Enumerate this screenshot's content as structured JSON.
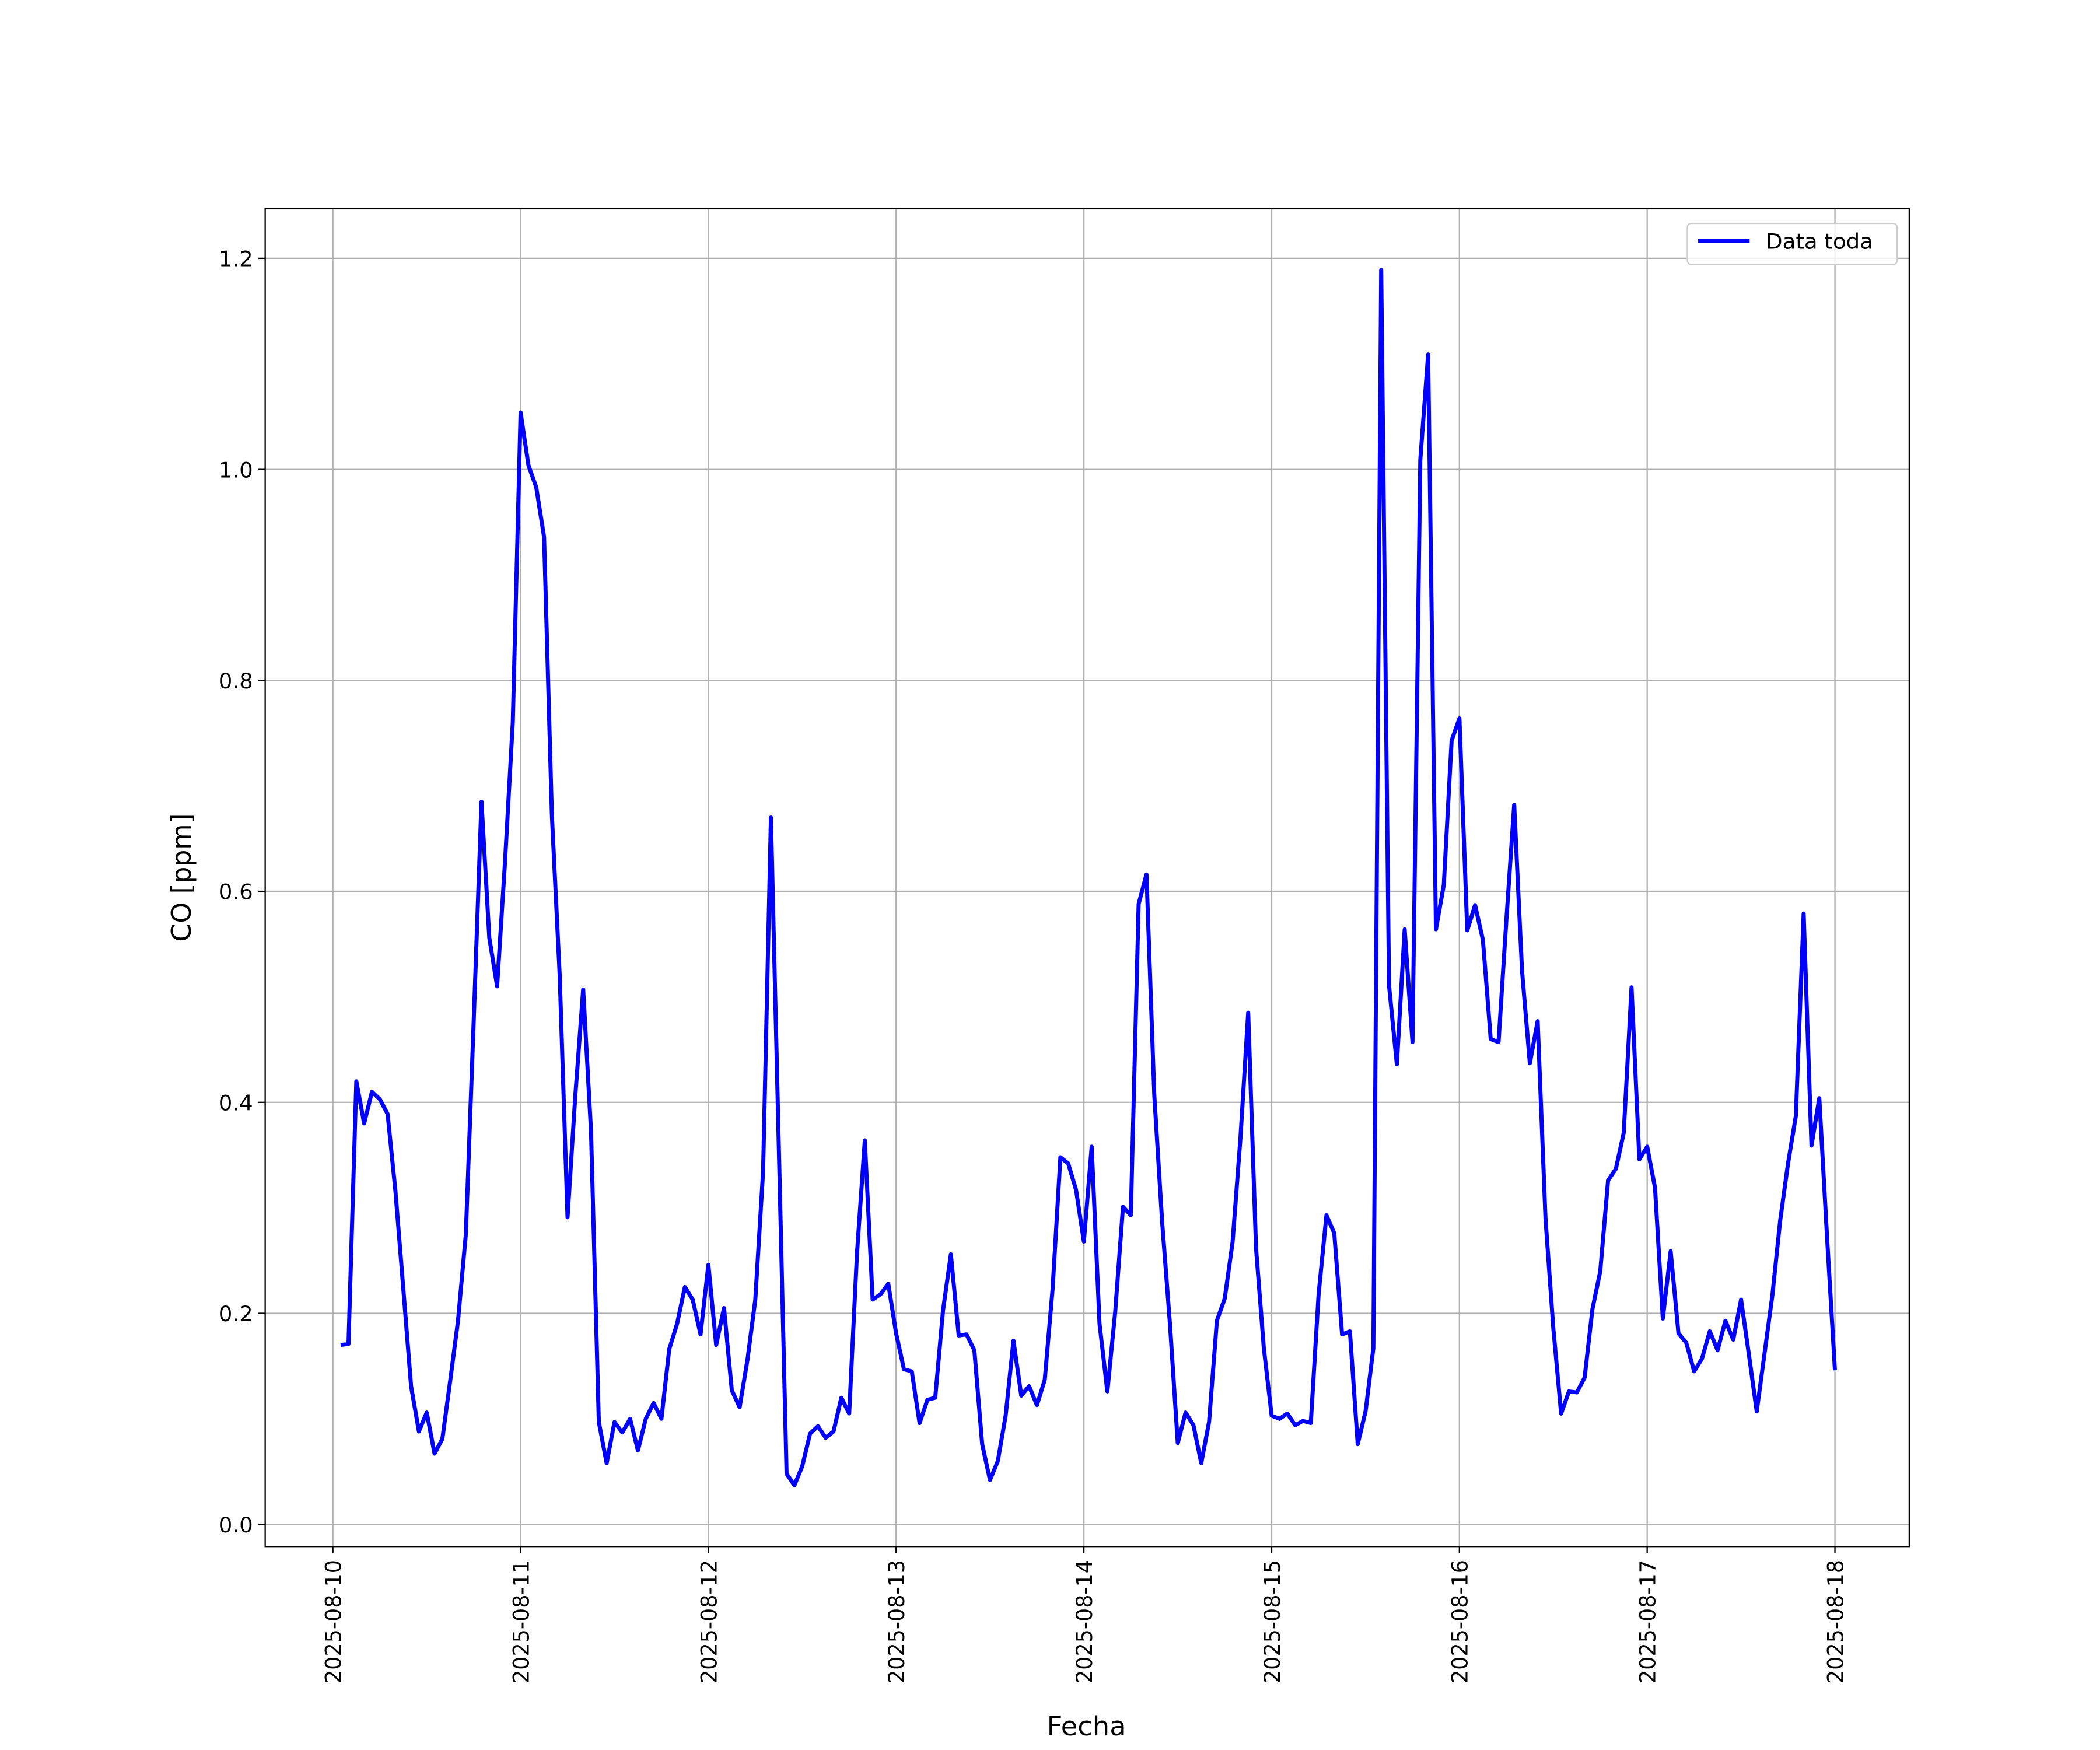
{
  "chart_data": {
    "type": "line",
    "xlabel": "Fecha",
    "ylabel": "CO [ppm]",
    "x": [
      "2025-08-10T01:00",
      "2025-08-10T02:00",
      "2025-08-10T03:00",
      "2025-08-10T04:00",
      "2025-08-10T05:00",
      "2025-08-10T06:00",
      "2025-08-10T07:00",
      "2025-08-10T08:00",
      "2025-08-10T09:00",
      "2025-08-10T10:00",
      "2025-08-10T11:00",
      "2025-08-10T12:00",
      "2025-08-10T13:00",
      "2025-08-10T14:00",
      "2025-08-10T15:00",
      "2025-08-10T16:00",
      "2025-08-10T17:00",
      "2025-08-10T18:00",
      "2025-08-10T19:00",
      "2025-08-10T20:00",
      "2025-08-10T21:00",
      "2025-08-10T22:00",
      "2025-08-10T23:00",
      "2025-08-11T00:00",
      "2025-08-11T01:00",
      "2025-08-11T02:00",
      "2025-08-11T03:00",
      "2025-08-11T04:00",
      "2025-08-11T05:00",
      "2025-08-11T06:00",
      "2025-08-11T07:00",
      "2025-08-11T08:00",
      "2025-08-11T09:00",
      "2025-08-11T10:00",
      "2025-08-11T11:00",
      "2025-08-11T12:00",
      "2025-08-11T13:00",
      "2025-08-11T14:00",
      "2025-08-11T15:00",
      "2025-08-11T16:00",
      "2025-08-11T17:00",
      "2025-08-11T18:00",
      "2025-08-11T19:00",
      "2025-08-11T20:00",
      "2025-08-11T21:00",
      "2025-08-11T22:00",
      "2025-08-11T23:00",
      "2025-08-12T00:00",
      "2025-08-12T01:00",
      "2025-08-12T02:00",
      "2025-08-12T03:00",
      "2025-08-12T04:00",
      "2025-08-12T05:00",
      "2025-08-12T06:00",
      "2025-08-12T07:00",
      "2025-08-12T08:00",
      "2025-08-12T09:00",
      "2025-08-12T10:00",
      "2025-08-12T11:00",
      "2025-08-12T12:00",
      "2025-08-12T13:00",
      "2025-08-12T14:00",
      "2025-08-12T15:00",
      "2025-08-12T16:00",
      "2025-08-12T17:00",
      "2025-08-12T18:00",
      "2025-08-12T19:00",
      "2025-08-12T20:00",
      "2025-08-12T21:00",
      "2025-08-12T22:00",
      "2025-08-12T23:00",
      "2025-08-13T00:00",
      "2025-08-13T01:00",
      "2025-08-13T02:00",
      "2025-08-13T03:00",
      "2025-08-13T04:00",
      "2025-08-13T05:00",
      "2025-08-13T06:00",
      "2025-08-13T07:00",
      "2025-08-13T08:00",
      "2025-08-13T09:00",
      "2025-08-13T10:00",
      "2025-08-13T11:00",
      "2025-08-13T12:00",
      "2025-08-13T13:00",
      "2025-08-13T14:00",
      "2025-08-13T15:00",
      "2025-08-13T16:00",
      "2025-08-13T17:00",
      "2025-08-13T18:00",
      "2025-08-13T19:00",
      "2025-08-13T20:00",
      "2025-08-13T21:00",
      "2025-08-13T22:00",
      "2025-08-13T23:00",
      "2025-08-14T00:00",
      "2025-08-14T01:00",
      "2025-08-14T02:00",
      "2025-08-14T03:00",
      "2025-08-14T04:00",
      "2025-08-14T05:00",
      "2025-08-14T06:00",
      "2025-08-14T07:00",
      "2025-08-14T08:00",
      "2025-08-14T09:00",
      "2025-08-14T10:00",
      "2025-08-14T11:00",
      "2025-08-14T12:00",
      "2025-08-14T13:00",
      "2025-08-14T14:00",
      "2025-08-14T15:00",
      "2025-08-14T16:00",
      "2025-08-14T17:00",
      "2025-08-14T18:00",
      "2025-08-14T19:00",
      "2025-08-14T20:00",
      "2025-08-14T21:00",
      "2025-08-14T22:00",
      "2025-08-14T23:00",
      "2025-08-15T00:00",
      "2025-08-15T01:00",
      "2025-08-15T02:00",
      "2025-08-15T03:00",
      "2025-08-15T04:00",
      "2025-08-15T05:00",
      "2025-08-15T06:00",
      "2025-08-15T07:00",
      "2025-08-15T08:00",
      "2025-08-15T09:00",
      "2025-08-15T10:00",
      "2025-08-15T11:00",
      "2025-08-15T12:00",
      "2025-08-15T13:00",
      "2025-08-15T14:00",
      "2025-08-15T15:00",
      "2025-08-15T16:00",
      "2025-08-15T17:00",
      "2025-08-15T18:00",
      "2025-08-15T19:00",
      "2025-08-15T20:00",
      "2025-08-15T21:00",
      "2025-08-15T22:00",
      "2025-08-15T23:00",
      "2025-08-16T00:00",
      "2025-08-16T01:00",
      "2025-08-16T02:00",
      "2025-08-16T03:00",
      "2025-08-16T04:00",
      "2025-08-16T05:00",
      "2025-08-16T06:00",
      "2025-08-16T07:00",
      "2025-08-16T08:00",
      "2025-08-16T09:00",
      "2025-08-16T10:00",
      "2025-08-16T11:00",
      "2025-08-16T12:00",
      "2025-08-16T13:00",
      "2025-08-16T14:00",
      "2025-08-16T15:00",
      "2025-08-16T16:00",
      "2025-08-16T17:00",
      "2025-08-16T18:00",
      "2025-08-16T19:00",
      "2025-08-16T20:00",
      "2025-08-16T21:00",
      "2025-08-16T22:00",
      "2025-08-16T23:00",
      "2025-08-17T00:00",
      "2025-08-17T01:00",
      "2025-08-17T02:00",
      "2025-08-17T03:00",
      "2025-08-17T04:00",
      "2025-08-17T05:00",
      "2025-08-17T06:00",
      "2025-08-17T07:00",
      "2025-08-17T08:00",
      "2025-08-17T09:00",
      "2025-08-17T10:00",
      "2025-08-17T11:00",
      "2025-08-17T12:00",
      "2025-08-17T13:00",
      "2025-08-17T14:00",
      "2025-08-17T15:00",
      "2025-08-17T16:00",
      "2025-08-17T17:00",
      "2025-08-17T18:00",
      "2025-08-17T19:00",
      "2025-08-17T20:00",
      "2025-08-17T21:00",
      "2025-08-17T22:00",
      "2025-08-17T23:00",
      "2025-08-18T00:00"
    ],
    "series": [
      {
        "name": "Data toda",
        "color": "#0000ff",
        "values": [
          0.17,
          0.171,
          0.42,
          0.38,
          0.41,
          0.403,
          0.389,
          0.316,
          0.224,
          0.131,
          0.088,
          0.106,
          0.067,
          0.081,
          0.136,
          0.193,
          0.275,
          0.476,
          0.685,
          0.556,
          0.51,
          0.627,
          0.76,
          1.054,
          1.004,
          0.983,
          0.936,
          0.672,
          0.52,
          0.291,
          0.407,
          0.507,
          0.373,
          0.097,
          0.058,
          0.097,
          0.087,
          0.1,
          0.07,
          0.1,
          0.115,
          0.1,
          0.166,
          0.19,
          0.225,
          0.213,
          0.18,
          0.246,
          0.17,
          0.205,
          0.127,
          0.111,
          0.156,
          0.213,
          0.335,
          0.67,
          0.36,
          0.048,
          0.037,
          0.055,
          0.086,
          0.093,
          0.082,
          0.088,
          0.12,
          0.105,
          0.257,
          0.364,
          0.213,
          0.218,
          0.228,
          0.181,
          0.147,
          0.145,
          0.096,
          0.118,
          0.12,
          0.203,
          0.256,
          0.179,
          0.18,
          0.165,
          0.076,
          0.042,
          0.06,
          0.103,
          0.174,
          0.122,
          0.131,
          0.113,
          0.137,
          0.223,
          0.348,
          0.342,
          0.317,
          0.268,
          0.358,
          0.19,
          0.126,
          0.201,
          0.301,
          0.293,
          0.588,
          0.616,
          0.407,
          0.287,
          0.19,
          0.077,
          0.106,
          0.094,
          0.058,
          0.097,
          0.193,
          0.214,
          0.267,
          0.365,
          0.485,
          0.262,
          0.167,
          0.103,
          0.1,
          0.105,
          0.094,
          0.098,
          0.096,
          0.218,
          0.293,
          0.276,
          0.18,
          0.183,
          0.076,
          0.107,
          0.167,
          1.189,
          0.511,
          0.436,
          0.564,
          0.457,
          1.009,
          1.109,
          0.564,
          0.606,
          0.743,
          0.764,
          0.563,
          0.587,
          0.554,
          0.46,
          0.457,
          0.573,
          0.682,
          0.525,
          0.437,
          0.477,
          0.29,
          0.186,
          0.105,
          0.126,
          0.125,
          0.139,
          0.204,
          0.24,
          0.326,
          0.337,
          0.371,
          0.509,
          0.346,
          0.358,
          0.319,
          0.195,
          0.259,
          0.181,
          0.172,
          0.145,
          0.157,
          0.183,
          0.165,
          0.193,
          0.175,
          0.213,
          0.161,
          0.107,
          0.162,
          0.217,
          0.288,
          0.342,
          0.387,
          0.579,
          0.359,
          0.404,
          0.271,
          0.146
        ]
      }
    ],
    "xlim": [
      "2025-08-09T15:21",
      "2025-08-18T09:30"
    ],
    "xticks": [
      "2025-08-10",
      "2025-08-11",
      "2025-08-12",
      "2025-08-13",
      "2025-08-14",
      "2025-08-15",
      "2025-08-16",
      "2025-08-17",
      "2025-08-18"
    ],
    "ylim": [
      -0.021,
      1.247
    ],
    "yticks": [
      {
        "value": 0,
        "label": "0.0"
      },
      0.2,
      0.4,
      0.6,
      0.8,
      {
        "value": 1,
        "label": "1.0"
      },
      1.2
    ],
    "grid": true,
    "legend": "upper right"
  }
}
